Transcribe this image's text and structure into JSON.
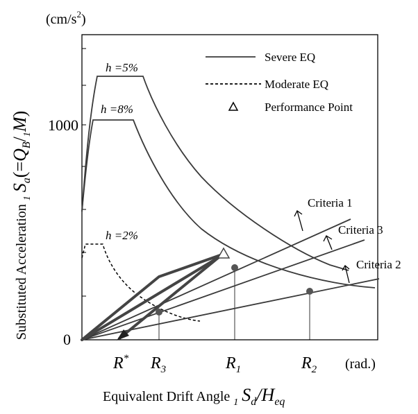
{
  "chart_data": {
    "type": "line",
    "unit_label": {
      "base": "(cm/s",
      "sup": "2",
      "close": ")"
    },
    "ylabel": {
      "prefix": "Substituted Acceleration ",
      "sub1": "1",
      "sa": "S",
      "sa_sub": "a",
      "eq": "(=",
      "q": "Q",
      "q_sub": "B",
      "div": "/",
      "sub2": "1",
      "m": "M",
      "close": ")"
    },
    "xlabel": {
      "prefix": "Equivalent Drift Angle ",
      "sub1": "1",
      "sd": "S",
      "sd_sub": "d",
      "div": "/",
      "h": "H",
      "h_sub": "eq"
    },
    "y_ticks": [
      {
        "value": 0,
        "label": "0"
      },
      {
        "value": 1000,
        "label": "1000"
      }
    ],
    "ylim": [
      0,
      1200
    ],
    "xlim": [
      0,
      1.0
    ],
    "x_unit_label": "(rad.)",
    "x_markers": [
      {
        "name": "R*",
        "main": "R",
        "sup": "*",
        "sub": "",
        "x": 0.37
      },
      {
        "name": "R3",
        "main": "R",
        "sup": "",
        "sub": "3",
        "x": 0.33
      },
      {
        "name": "R1",
        "main": "R",
        "sup": "",
        "sub": "1",
        "x": 0.63
      },
      {
        "name": "R2",
        "main": "R",
        "sup": "",
        "sub": "2",
        "x": 0.91
      }
    ],
    "legend": {
      "placement": "top-right",
      "entries": [
        {
          "label": "Severe EQ",
          "style": "solid"
        },
        {
          "label": "Moderate EQ",
          "style": "dashed"
        },
        {
          "label": "Performance Point",
          "style": "triangle"
        }
      ]
    },
    "series": [
      {
        "label": "h =5%",
        "damping": "5%",
        "style": "solid",
        "plateau": 1230
      },
      {
        "label": "h =8%",
        "damping": "8%",
        "style": "solid",
        "plateau": 1030
      },
      {
        "label": "h =2%",
        "damping": "2%",
        "style": "dashed",
        "plateau": 440
      }
    ],
    "criteria": [
      {
        "label": "Criteria 1",
        "slope": 555
      },
      {
        "label": "Criteria 3",
        "slope": 460
      },
      {
        "label": "Criteria 2",
        "slope": 220
      }
    ],
    "intersections": [
      {
        "name": "R1",
        "x": 0.63,
        "y": 340
      },
      {
        "name": "R2",
        "x": 0.91,
        "y": 220
      },
      {
        "name": "R3",
        "x": 0.33,
        "y": 130
      }
    ],
    "performance_point": {
      "x": 0.57,
      "y": 400
    },
    "grid": false
  }
}
